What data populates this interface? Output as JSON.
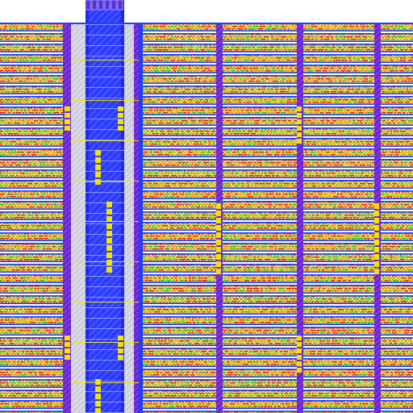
{
  "view": {
    "kind": "ic-layout-viewer",
    "description_visible_text": ""
  },
  "layers": [
    {
      "name": "metal1",
      "color": "#1f3fff",
      "hatch": "diagonal"
    },
    {
      "name": "metal2",
      "color": "#7a28d8",
      "hatch": "diagonal"
    },
    {
      "name": "poly",
      "color": "#e0231c",
      "hatch": "solid"
    },
    {
      "name": "diffusion",
      "color": "#2fbf2f",
      "hatch": "dots"
    },
    {
      "name": "implant",
      "color": "#f2e300",
      "hatch": "solid"
    },
    {
      "name": "contact",
      "color": "#f2a100",
      "hatch": "solid"
    },
    {
      "name": "nwell",
      "color": "#ffd56a",
      "hatch": "outline"
    }
  ],
  "regions": {
    "left_cell_columns": 1,
    "right_cell_columns": 4,
    "central_rail_present": true
  }
}
